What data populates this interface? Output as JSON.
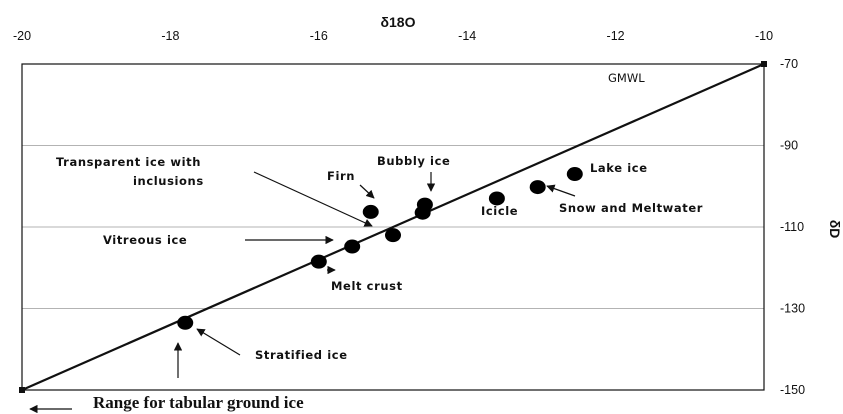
{
  "chart_data": {
    "type": "scatter",
    "xlabel": "δ18O",
    "ylabel": "δD",
    "xlim": [
      -20,
      -10
    ],
    "ylim": [
      -150,
      -70
    ],
    "x_ticks": [
      "-20",
      "-18",
      "-16",
      "-14",
      "-12",
      "-10"
    ],
    "y_ticks": [
      "-70",
      "-90",
      "-110",
      "-130",
      "-150"
    ],
    "grid": "horizontal",
    "line": {
      "label": "GMWL",
      "x": [
        -20,
        -10
      ],
      "y": [
        -150,
        -70
      ]
    },
    "points": [
      {
        "x": -17.8,
        "y": -133.5
      },
      {
        "x": -16.0,
        "y": -118.5
      },
      {
        "x": -15.55,
        "y": -114.8
      },
      {
        "x": -15.0,
        "y": -112.0
      },
      {
        "x": -15.3,
        "y": -106.3
      },
      {
        "x": -14.6,
        "y": -106.5
      },
      {
        "x": -14.57,
        "y": -104.5
      },
      {
        "x": -13.6,
        "y": -103.0
      },
      {
        "x": -13.05,
        "y": -100.2
      },
      {
        "x": -12.55,
        "y": -97.0
      }
    ],
    "annotations": [
      "Transparent ice with",
      "inclusions",
      "Bubbly ice",
      "Firn",
      "Lake ice",
      "Icicle",
      "Snow and Meltwater",
      "Vitreous ice",
      "Melt crust",
      "Stratified ice"
    ],
    "range_label": "Range for tabular ground ice"
  }
}
